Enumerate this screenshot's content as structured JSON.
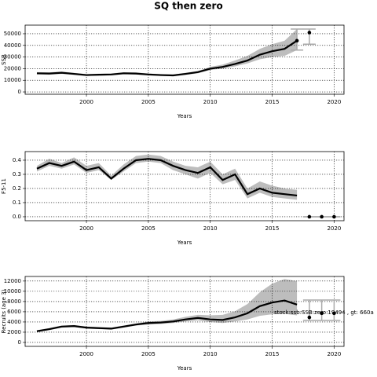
{
  "chart_data": [
    {
      "type": "line",
      "title": "SQ then zero",
      "xlabel": "Years",
      "ylabel": "SSB",
      "x": [
        1996,
        1997,
        1998,
        1999,
        2000,
        2001,
        2002,
        2003,
        2004,
        2005,
        2006,
        2007,
        2008,
        2009,
        2010,
        2011,
        2012,
        2013,
        2014,
        2015,
        2016,
        2017
      ],
      "values": [
        16000,
        15800,
        16500,
        15500,
        14500,
        14800,
        15000,
        16000,
        15800,
        15000,
        14500,
        14200,
        15500,
        17000,
        20000,
        21500,
        24000,
        27000,
        32000,
        35000,
        37000,
        44000
      ],
      "band_lower": [
        15000,
        14800,
        15500,
        14600,
        13700,
        14000,
        14200,
        15100,
        14900,
        14200,
        13700,
        13400,
        14600,
        16000,
        18800,
        20000,
        22000,
        24500,
        28000,
        30000,
        31000,
        36000
      ],
      "band_upper": [
        17000,
        16800,
        17500,
        16400,
        15300,
        15600,
        15800,
        16900,
        16700,
        15800,
        15300,
        15000,
        16400,
        18000,
        21500,
        23500,
        27000,
        31000,
        37000,
        41000,
        44000,
        54000
      ],
      "points": {
        "x": [
          2017,
          2018
        ],
        "values": [
          44000,
          51000
        ],
        "lower": [
          36000,
          41000
        ],
        "upper": [
          54000,
          54000
        ]
      },
      "color": "#000000",
      "band_color": "#bdbdbd",
      "xlim": [
        1995.05,
        2020.8
      ],
      "xticks": [
        2000,
        2005,
        2010,
        2015,
        2020
      ],
      "ylim": [
        -2000,
        57400
      ],
      "yticks": [
        0,
        10000,
        20000,
        30000,
        40000,
        50000
      ],
      "grid": true
    },
    {
      "type": "line",
      "xlabel": "Years",
      "ylabel": "F5-11",
      "x": [
        1996,
        1997,
        1998,
        1999,
        2000,
        2001,
        2002,
        2003,
        2004,
        2005,
        2006,
        2007,
        2008,
        2009,
        2010,
        2011,
        2012,
        2013,
        2014,
        2015,
        2016,
        2017
      ],
      "values": [
        0.34,
        0.38,
        0.36,
        0.39,
        0.33,
        0.35,
        0.27,
        0.34,
        0.4,
        0.41,
        0.4,
        0.36,
        0.33,
        0.31,
        0.35,
        0.26,
        0.3,
        0.16,
        0.2,
        0.17,
        0.16,
        0.15
      ],
      "band_lower": [
        0.32,
        0.36,
        0.34,
        0.37,
        0.31,
        0.33,
        0.26,
        0.32,
        0.38,
        0.39,
        0.38,
        0.33,
        0.3,
        0.27,
        0.31,
        0.23,
        0.26,
        0.13,
        0.17,
        0.14,
        0.13,
        0.12
      ],
      "band_upper": [
        0.36,
        0.41,
        0.38,
        0.42,
        0.36,
        0.38,
        0.29,
        0.37,
        0.43,
        0.44,
        0.43,
        0.39,
        0.36,
        0.35,
        0.39,
        0.3,
        0.34,
        0.2,
        0.25,
        0.22,
        0.2,
        0.19
      ],
      "points": {
        "x": [
          2018,
          2019,
          2020
        ],
        "values": [
          0,
          0,
          0
        ],
        "lower": [
          0,
          0,
          0
        ],
        "upper": [
          0,
          0,
          0
        ]
      },
      "color": "#000000",
      "band_color": "#bdbdbd",
      "xlim": [
        1995.05,
        2020.8
      ],
      "xticks": [
        2000,
        2005,
        2010,
        2015,
        2020
      ],
      "ylim": [
        -0.028,
        0.461
      ],
      "yticks": [
        {
          "value": 0,
          "label": "0.0"
        },
        0.1,
        0.2,
        0.3,
        0.4
      ],
      "grid": true
    },
    {
      "type": "line",
      "xlabel": "Years",
      "ylabel": "Recruits (age 3)",
      "annotation": "stock:ssb:SSB:zero:19494 , gt: 660a",
      "x": [
        1996,
        1997,
        1998,
        1999,
        2000,
        2001,
        2002,
        2003,
        2004,
        2005,
        2006,
        2007,
        2008,
        2009,
        2010,
        2011,
        2012,
        2013,
        2014,
        2015,
        2016,
        2017
      ],
      "values": [
        2200,
        2600,
        3100,
        3200,
        2900,
        2800,
        2700,
        3100,
        3500,
        3800,
        3900,
        4100,
        4500,
        4800,
        4500,
        4400,
        4900,
        5700,
        7100,
        7800,
        8200,
        7400
      ],
      "band_lower": [
        2000,
        2400,
        2900,
        3000,
        2700,
        2600,
        2500,
        2900,
        3300,
        3500,
        3600,
        3800,
        4100,
        4300,
        4000,
        3800,
        4100,
        4500,
        5200,
        5500,
        5600,
        5300
      ],
      "band_upper": [
        2400,
        2800,
        3300,
        3400,
        3100,
        3000,
        2900,
        3300,
        3700,
        4100,
        4200,
        4500,
        5000,
        5400,
        5300,
        5400,
        6100,
        7500,
        9800,
        11500,
        12400,
        12000
      ],
      "points": {
        "x": [
          2018,
          2019,
          2020
        ],
        "values": [
          4900,
          5700,
          5700
        ],
        "lower": [
          4300,
          4300,
          4300
        ],
        "upper": [
          8300,
          8300,
          8300
        ]
      },
      "color": "#000000",
      "band_color": "#bdbdbd",
      "xlim": [
        1995.05,
        2020.8
      ],
      "xticks": [
        2000,
        2005,
        2010,
        2015,
        2020
      ],
      "ylim": [
        -770,
        12900
      ],
      "yticks": [
        0,
        2000,
        4000,
        6000,
        8000,
        10000,
        12000
      ],
      "grid": true
    }
  ]
}
